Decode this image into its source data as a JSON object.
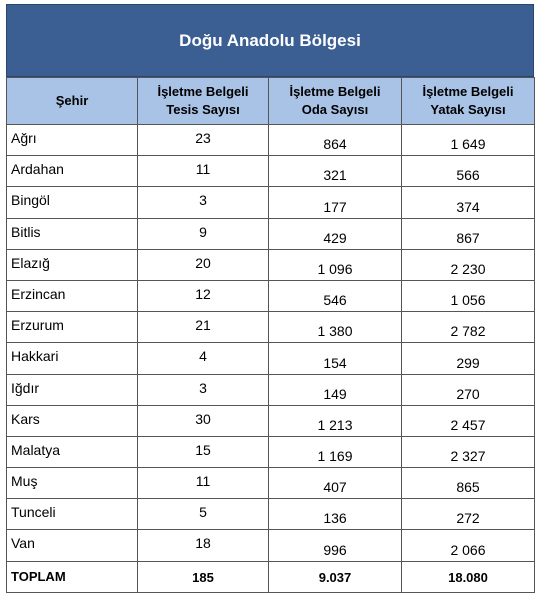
{
  "title": "Doğu Anadolu Bölgesi",
  "headers": {
    "city": "Şehir",
    "facilities": [
      "İşletme Belgeli",
      "Tesis Sayısı"
    ],
    "rooms": [
      "İşletme Belgeli",
      "Oda Sayısı"
    ],
    "beds": [
      "İşletme Belgeli",
      "Yatak Sayısı"
    ]
  },
  "rows": [
    {
      "city": "Ağrı",
      "facilities": "23",
      "rooms": "864",
      "beds": "1 649"
    },
    {
      "city": "Ardahan",
      "facilities": "11",
      "rooms": "321",
      "beds": "566"
    },
    {
      "city": "Bingöl",
      "facilities": "3",
      "rooms": "177",
      "beds": "374"
    },
    {
      "city": "Bitlis",
      "facilities": "9",
      "rooms": "429",
      "beds": "867"
    },
    {
      "city": "Elazığ",
      "facilities": "20",
      "rooms": "1 096",
      "beds": "2 230"
    },
    {
      "city": "Erzincan",
      "facilities": "12",
      "rooms": "546",
      "beds": "1 056"
    },
    {
      "city": "Erzurum",
      "facilities": "21",
      "rooms": "1 380",
      "beds": "2 782"
    },
    {
      "city": "Hakkari",
      "facilities": "4",
      "rooms": "154",
      "beds": "299"
    },
    {
      "city": "Iğdır",
      "facilities": "3",
      "rooms": "149",
      "beds": "270"
    },
    {
      "city": "Kars",
      "facilities": "30",
      "rooms": "1 213",
      "beds": "2 457"
    },
    {
      "city": "Malatya",
      "facilities": "15",
      "rooms": "1 169",
      "beds": "2 327"
    },
    {
      "city": "Muş",
      "facilities": "11",
      "rooms": "407",
      "beds": "865"
    },
    {
      "city": "Tunceli",
      "facilities": "5",
      "rooms": "136",
      "beds": "272"
    },
    {
      "city": "Van",
      "facilities": "18",
      "rooms": "996",
      "beds": "2 066"
    }
  ],
  "total": {
    "label": "TOPLAM",
    "facilities": "185",
    "rooms": "9.037",
    "beds": "18.080"
  },
  "colors": {
    "title_bg": "#3b5f93",
    "header_bg": "#a9c3e6",
    "border": "#555555"
  }
}
